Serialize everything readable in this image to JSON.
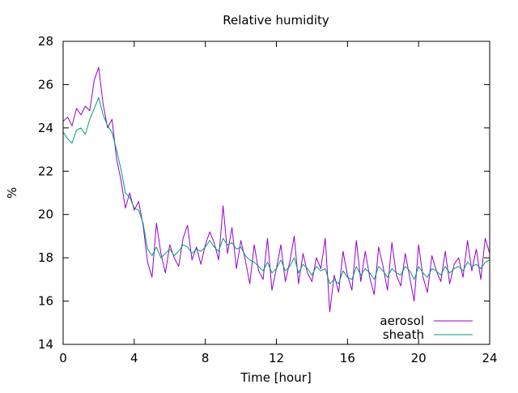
{
  "chart_data": {
    "type": "line",
    "title": "Relative humidity",
    "xlabel": "Time [hour]",
    "ylabel": "%",
    "xlim": [
      0,
      24
    ],
    "ylim": [
      14,
      28
    ],
    "xticks": [
      0,
      4,
      8,
      12,
      16,
      20,
      24
    ],
    "yticks": [
      14,
      16,
      18,
      20,
      22,
      24,
      26,
      28
    ],
    "grid": false,
    "legend_position": "bottom-right",
    "series": [
      {
        "name": "aerosol",
        "color": "#9400d3",
        "x": [
          0,
          0.25,
          0.5,
          0.75,
          1,
          1.25,
          1.5,
          1.75,
          2,
          2.25,
          2.5,
          2.75,
          3,
          3.25,
          3.5,
          3.75,
          4,
          4.25,
          4.5,
          4.75,
          5,
          5.25,
          5.5,
          5.75,
          6,
          6.25,
          6.5,
          6.75,
          7,
          7.25,
          7.5,
          7.75,
          8,
          8.25,
          8.5,
          8.75,
          9,
          9.25,
          9.5,
          9.75,
          10,
          10.25,
          10.5,
          10.75,
          11,
          11.25,
          11.5,
          11.75,
          12,
          12.25,
          12.5,
          12.75,
          13,
          13.25,
          13.5,
          13.75,
          14,
          14.25,
          14.5,
          14.75,
          15,
          15.25,
          15.5,
          15.75,
          16,
          16.25,
          16.5,
          16.75,
          17,
          17.25,
          17.5,
          17.75,
          18,
          18.25,
          18.5,
          18.75,
          19,
          19.25,
          19.5,
          19.75,
          20,
          20.25,
          20.5,
          20.75,
          21,
          21.25,
          21.5,
          21.75,
          22,
          22.25,
          22.5,
          22.75,
          23,
          23.25,
          23.5,
          23.75,
          24
        ],
        "values": [
          24.3,
          24.5,
          24.1,
          24.9,
          24.6,
          25.0,
          24.8,
          26.2,
          26.8,
          25.1,
          24.0,
          24.4,
          22.6,
          21.6,
          20.3,
          21.0,
          20.2,
          20.6,
          19.5,
          17.8,
          17.1,
          19.6,
          18.2,
          17.3,
          18.6,
          18.0,
          17.6,
          18.9,
          19.5,
          17.9,
          18.5,
          17.7,
          18.6,
          19.2,
          18.7,
          17.9,
          20.4,
          18.2,
          19.4,
          17.5,
          18.8,
          17.9,
          16.8,
          18.6,
          17.4,
          17.0,
          18.9,
          16.5,
          17.5,
          18.6,
          16.9,
          17.8,
          19.0,
          16.8,
          18.2,
          17.3,
          16.9,
          18.0,
          17.5,
          18.9,
          15.5,
          17.2,
          16.4,
          18.3,
          17.2,
          16.5,
          18.8,
          16.9,
          18.3,
          17.1,
          16.3,
          18.5,
          17.6,
          16.5,
          18.7,
          17.2,
          16.7,
          18.2,
          17.1,
          16.0,
          18.6,
          17.1,
          16.4,
          18.1,
          17.4,
          16.9,
          18.3,
          16.8,
          17.7,
          18.0,
          17.1,
          18.8,
          17.4,
          18.4,
          17.0,
          18.9,
          18.2
        ]
      },
      {
        "name": "sheath",
        "color": "#009e73",
        "x": [
          0,
          0.25,
          0.5,
          0.75,
          1,
          1.25,
          1.5,
          1.75,
          2,
          2.25,
          2.5,
          2.75,
          3,
          3.25,
          3.5,
          3.75,
          4,
          4.25,
          4.5,
          4.75,
          5,
          5.25,
          5.5,
          5.75,
          6,
          6.25,
          6.5,
          6.75,
          7,
          7.25,
          7.5,
          7.75,
          8,
          8.25,
          8.5,
          8.75,
          9,
          9.25,
          9.5,
          9.75,
          10,
          10.25,
          10.5,
          10.75,
          11,
          11.25,
          11.5,
          11.75,
          12,
          12.25,
          12.5,
          12.75,
          13,
          13.25,
          13.5,
          13.75,
          14,
          14.25,
          14.5,
          14.75,
          15,
          15.25,
          15.5,
          15.75,
          16,
          16.25,
          16.5,
          16.75,
          17,
          17.25,
          17.5,
          17.75,
          18,
          18.25,
          18.5,
          18.75,
          19,
          19.25,
          19.5,
          19.75,
          20,
          20.25,
          20.5,
          20.75,
          21,
          21.25,
          21.5,
          21.75,
          22,
          22.25,
          22.5,
          22.75,
          23,
          23.25,
          23.5,
          23.75,
          24
        ],
        "values": [
          23.8,
          23.5,
          23.3,
          23.9,
          24.0,
          23.7,
          24.4,
          24.9,
          25.4,
          24.6,
          24.1,
          23.8,
          23.0,
          22.1,
          21.0,
          20.8,
          20.3,
          20.2,
          19.6,
          18.4,
          18.1,
          18.5,
          18.0,
          18.2,
          18.4,
          18.1,
          18.3,
          18.6,
          18.5,
          18.2,
          18.4,
          18.3,
          18.5,
          18.8,
          18.5,
          18.3,
          18.9,
          18.6,
          18.7,
          18.4,
          18.5,
          18.1,
          17.9,
          17.8,
          17.6,
          17.4,
          17.8,
          17.3,
          17.5,
          17.9,
          17.4,
          17.6,
          18.0,
          17.3,
          17.7,
          17.5,
          17.2,
          17.6,
          17.4,
          17.5,
          16.8,
          17.0,
          16.8,
          17.4,
          17.1,
          17.0,
          17.6,
          17.2,
          17.5,
          17.3,
          17.0,
          17.6,
          17.4,
          17.1,
          17.5,
          17.3,
          17.2,
          17.6,
          17.4,
          17.0,
          17.6,
          17.3,
          17.1,
          17.5,
          17.4,
          17.2,
          17.6,
          17.3,
          17.5,
          17.6,
          17.4,
          17.8,
          17.6,
          17.7,
          17.5,
          17.8,
          17.9
        ]
      }
    ]
  }
}
